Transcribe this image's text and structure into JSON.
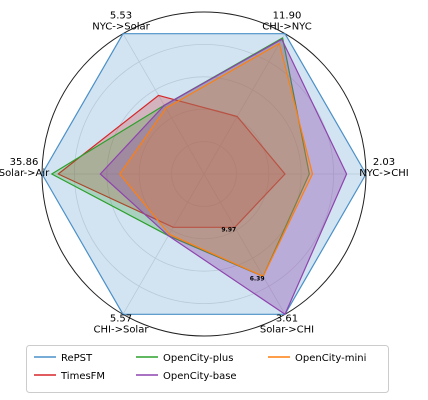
{
  "chart_data": {
    "type": "radar",
    "axes": [
      {
        "label": "NYC->CHI",
        "max_label": "2.03"
      },
      {
        "label": "CHI->NYC",
        "max_label": "11.90"
      },
      {
        "label": "NYC->Solar",
        "max_label": "5.53"
      },
      {
        "label": "Solar->Air",
        "max_label": "35.86"
      },
      {
        "label": "CHI->Solar",
        "max_label": "5.57"
      },
      {
        "label": "Solar->CHI",
        "max_label": "3.61"
      }
    ],
    "rmax": 1.0,
    "grid_levels": [
      0.2,
      0.4,
      0.6,
      0.8,
      1.0
    ],
    "series": [
      {
        "name": "RePST",
        "color": "#4a90c8",
        "fill_alpha": 0.25,
        "values": [
          1.0,
          1.0,
          1.0,
          1.0,
          1.0,
          1.0
        ]
      },
      {
        "name": "TimesFM",
        "color": "#d62728",
        "fill_alpha": 0.25,
        "values": [
          0.5,
          0.41,
          0.56,
          0.9,
          0.38,
          0.38
        ]
      },
      {
        "name": "OpenCity-plus",
        "color": "#2ca02c",
        "fill_alpha": 0.25,
        "values": [
          0.65,
          0.97,
          0.49,
          0.94,
          0.44,
          0.73
        ]
      },
      {
        "name": "OpenCity-base",
        "color": "#8e44ad",
        "fill_alpha": 0.35,
        "values": [
          0.88,
          0.96,
          0.49,
          0.64,
          0.44,
          1.0
        ]
      },
      {
        "name": "OpenCity-mini",
        "color": "#ff7f0e",
        "fill_alpha": 0.25,
        "values": [
          0.67,
          0.93,
          0.47,
          0.52,
          0.43,
          0.73
        ]
      }
    ],
    "annotations": [
      {
        "text": "9.97",
        "axis": 5,
        "r": 0.38
      },
      {
        "text": "6.39",
        "axis": 5,
        "r": 0.73
      }
    ],
    "grid": true,
    "legend_position": "bottom"
  }
}
